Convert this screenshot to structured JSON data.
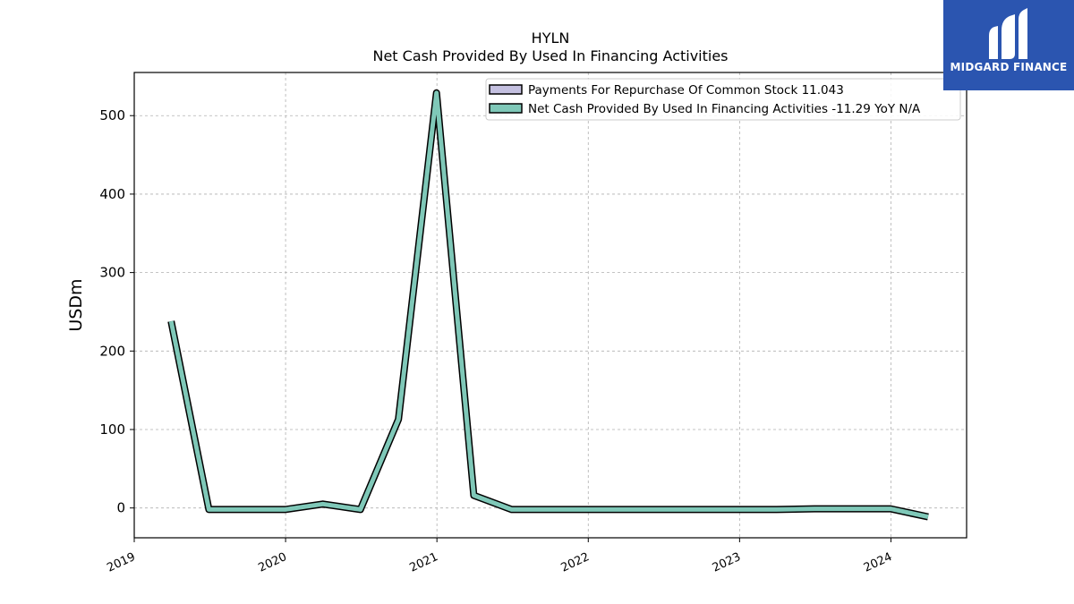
{
  "chart_data": {
    "type": "line",
    "title": "HYLN",
    "subtitle": "Net Cash Provided By Used In Financing Activities",
    "ylabel": "USDm",
    "xlabel": "",
    "ylim": [
      -38,
      555
    ],
    "xlim": [
      2019.0,
      2024.5
    ],
    "yticks": [
      0,
      100,
      200,
      300,
      400,
      500
    ],
    "xticks": [
      "2019",
      "2020",
      "2021",
      "2022",
      "2023",
      "2024"
    ],
    "grid": true,
    "legend_position": "top-right",
    "series": [
      {
        "name": "Payments For Repurchase Of Common Stock",
        "legend_value": "11.043",
        "color": "#c4c0e0",
        "x": [],
        "y": []
      },
      {
        "name": "Net Cash Provided By Used In Financing Activities",
        "legend_value": "-11.29 YoY N/A",
        "color": "#7fc8b8",
        "x": [
          "2019-03-31",
          "2019-06-30",
          "2019-09-30",
          "2019-12-31",
          "2020-03-31",
          "2020-06-30",
          "2020-09-30",
          "2020-12-31",
          "2021-03-31",
          "2021-06-30",
          "2021-09-30",
          "2021-12-31",
          "2022-03-31",
          "2022-06-30",
          "2022-09-30",
          "2022-12-31",
          "2023-03-31",
          "2023-06-30",
          "2023-09-30",
          "2023-12-31",
          "2024-03-31"
        ],
        "y": [
          238,
          -2,
          -2,
          -2,
          5,
          -2,
          113,
          529,
          16,
          -2,
          -2,
          -2,
          -2,
          -2,
          -2,
          -2,
          -2,
          -1,
          -1,
          -1,
          -11.29
        ]
      }
    ]
  },
  "legend": {
    "item1": "Payments For Repurchase Of Common Stock  11.043",
    "item2": "Net Cash Provided By Used In Financing Activities  -11.29 YoY N/A"
  },
  "logo": {
    "text": "MIDGARD FINANCE",
    "background": "#2b55b0"
  }
}
